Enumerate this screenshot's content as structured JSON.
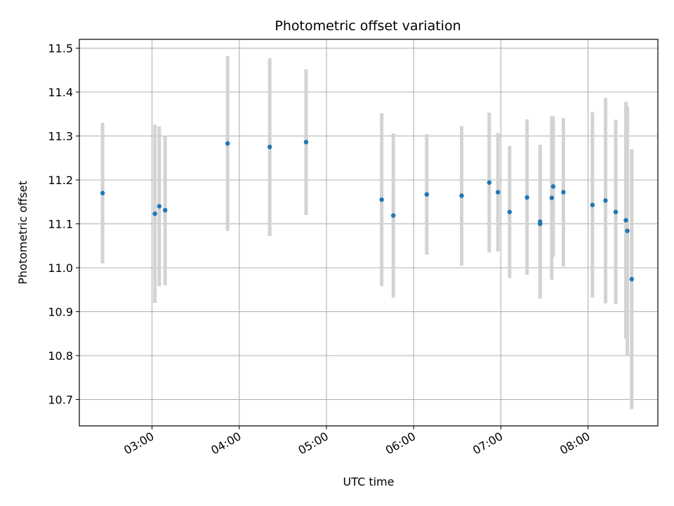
{
  "chart_data": {
    "type": "scatter",
    "title": "Photometric offset variation",
    "xlabel": "UTC time",
    "ylabel": "Photometric offset",
    "grid": true,
    "xlim": [
      "02:10",
      "08:48"
    ],
    "ylim": [
      10.64,
      11.52
    ],
    "xticks": [
      "03:00",
      "04:00",
      "05:00",
      "06:00",
      "07:00",
      "08:00"
    ],
    "yticks": [
      10.7,
      10.8,
      10.9,
      11.0,
      11.1,
      11.2,
      11.3,
      11.4,
      11.5
    ],
    "ytick_labels": [
      "10.7",
      "10.8",
      "10.9",
      "11.0",
      "11.1",
      "11.2",
      "11.3",
      "11.4",
      "11.5"
    ],
    "colors": {
      "point": "#1f77b4",
      "errorbar": "#d3d3d3",
      "grid": "#b0b0b0"
    },
    "points": [
      {
        "x": "02:26",
        "y": 11.17,
        "ylow": 11.01,
        "yhigh": 11.33
      },
      {
        "x": "03:02",
        "y": 11.123,
        "ylow": 10.92,
        "yhigh": 11.326
      },
      {
        "x": "03:05",
        "y": 11.14,
        "ylow": 10.958,
        "yhigh": 11.322
      },
      {
        "x": "03:09",
        "y": 11.131,
        "ylow": 10.96,
        "yhigh": 11.3
      },
      {
        "x": "03:52",
        "y": 11.283,
        "ylow": 11.084,
        "yhigh": 11.482
      },
      {
        "x": "04:21",
        "y": 11.275,
        "ylow": 11.072,
        "yhigh": 11.477
      },
      {
        "x": "04:46",
        "y": 11.286,
        "ylow": 11.12,
        "yhigh": 11.452
      },
      {
        "x": "05:38",
        "y": 11.155,
        "ylow": 10.958,
        "yhigh": 11.352
      },
      {
        "x": "05:46",
        "y": 11.119,
        "ylow": 10.932,
        "yhigh": 11.306
      },
      {
        "x": "06:09",
        "y": 11.167,
        "ylow": 11.03,
        "yhigh": 11.304
      },
      {
        "x": "06:33",
        "y": 11.164,
        "ylow": 11.005,
        "yhigh": 11.323
      },
      {
        "x": "06:52",
        "y": 11.194,
        "ylow": 11.035,
        "yhigh": 11.353
      },
      {
        "x": "06:58",
        "y": 11.172,
        "ylow": 11.037,
        "yhigh": 11.307
      },
      {
        "x": "07:06",
        "y": 11.127,
        "ylow": 10.977,
        "yhigh": 11.277
      },
      {
        "x": "07:18",
        "y": 11.16,
        "ylow": 10.984,
        "yhigh": 11.338
      },
      {
        "x": "07:27",
        "y": 11.105,
        "ylow": 10.93,
        "yhigh": 11.28
      },
      {
        "x": "07:27",
        "y": 11.1,
        "ylow": 10.935,
        "yhigh": 11.265
      },
      {
        "x": "07:35",
        "y": 11.159,
        "ylow": 10.973,
        "yhigh": 11.345
      },
      {
        "x": "07:36",
        "y": 11.185,
        "ylow": 11.025,
        "yhigh": 11.345
      },
      {
        "x": "07:43",
        "y": 11.172,
        "ylow": 11.003,
        "yhigh": 11.341
      },
      {
        "x": "08:03",
        "y": 11.143,
        "ylow": 10.932,
        "yhigh": 11.354
      },
      {
        "x": "08:12",
        "y": 11.153,
        "ylow": 10.919,
        "yhigh": 11.387
      },
      {
        "x": "08:19",
        "y": 11.127,
        "ylow": 10.917,
        "yhigh": 11.337
      },
      {
        "x": "08:26",
        "y": 11.108,
        "ylow": 10.838,
        "yhigh": 11.378
      },
      {
        "x": "08:27",
        "y": 11.084,
        "ylow": 10.8,
        "yhigh": 11.368
      },
      {
        "x": "08:30",
        "y": 10.974,
        "ylow": 10.678,
        "yhigh": 11.27
      }
    ]
  }
}
